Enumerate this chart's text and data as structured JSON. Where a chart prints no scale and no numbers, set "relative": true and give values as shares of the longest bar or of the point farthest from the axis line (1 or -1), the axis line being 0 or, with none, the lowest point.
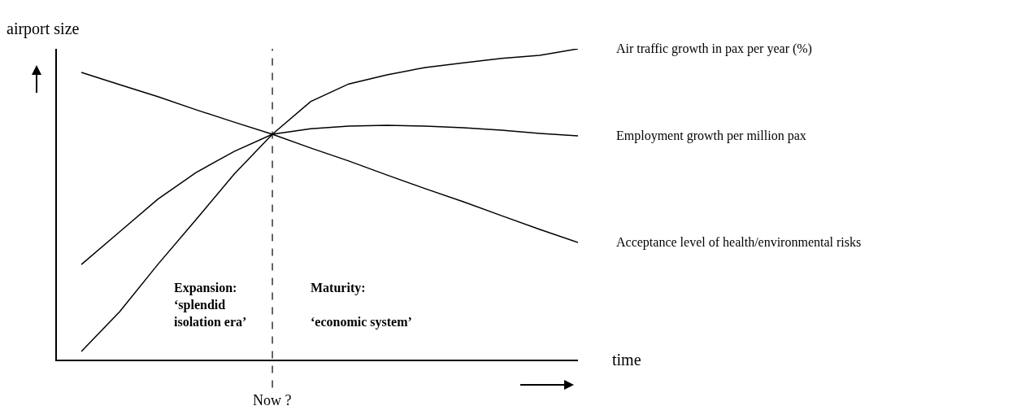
{
  "chart_data": {
    "type": "line",
    "relative": true,
    "xlabel": "time",
    "ylabel": "airport size",
    "categories": [
      null,
      null,
      null,
      null,
      null,
      null,
      null,
      null,
      null,
      null,
      null,
      null,
      null,
      null
    ],
    "series": [
      {
        "name": "Air traffic growth in pax per year (%)",
        "color": "#000000",
        "values": [
          0.026,
          0.154,
          0.306,
          0.45,
          0.597,
          0.725,
          0.83,
          0.887,
          0.916,
          0.94,
          0.955,
          0.969,
          0.979,
          1
        ]
      },
      {
        "name": "Employment growth per million pax",
        "color": "#000000",
        "values": [
          0.306,
          0.411,
          0.516,
          0.602,
          0.67,
          0.725,
          0.743,
          0.751,
          0.754,
          0.751,
          0.746,
          0.738,
          0.728,
          0.72
        ]
      },
      {
        "name": "Acceptance level of health/environmental risks",
        "color": "#000000",
        "values": [
          0.924,
          0.885,
          0.846,
          0.804,
          0.764,
          0.725,
          0.681,
          0.639,
          0.594,
          0.55,
          0.508,
          0.463,
          0.419,
          0.377
        ]
      }
    ],
    "annotations": [
      "Expansion:\n‘splendid\nisolation era’",
      "Maturity:\n\n‘economic system’",
      "Now ?"
    ],
    "legend": false,
    "grid": false,
    "marker": "none",
    "line_style": "solid"
  }
}
